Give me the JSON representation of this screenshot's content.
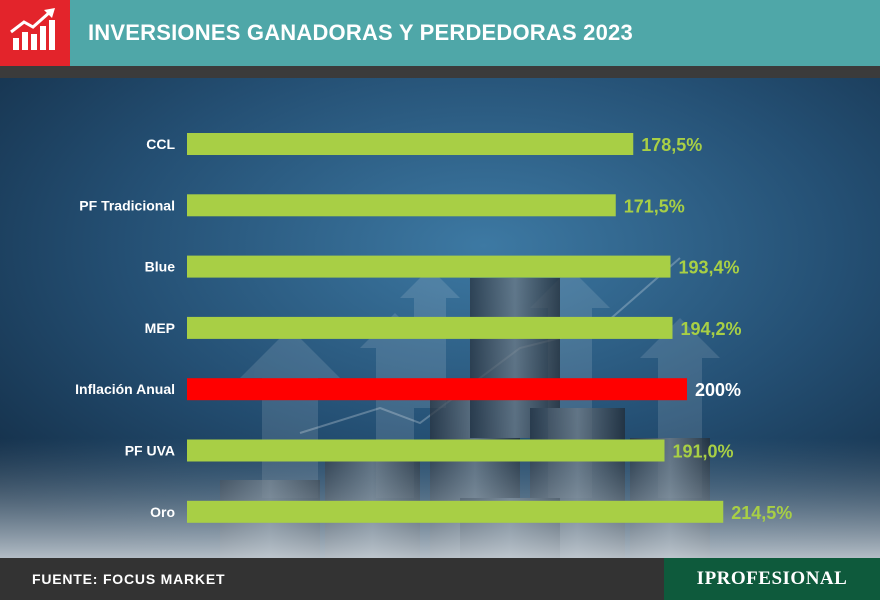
{
  "header": {
    "title": "INVERSIONES GANADORAS Y PERDEDORAS 2023",
    "logo_icon": "rising-bar-chart-icon"
  },
  "footer": {
    "source": "FUENTE: FOCUS MARKET",
    "brand": "IPROFESIONAL"
  },
  "colors": {
    "header": "#4fa7a8",
    "logo": "#e3242b",
    "bar": "#a8cf45",
    "highlight_bar": "#ff0000",
    "value_text": "#a8cf45",
    "highlight_text": "#ffffff",
    "brand": "#0e5a3c"
  },
  "chart_data": {
    "type": "bar",
    "orientation": "horizontal",
    "title": "INVERSIONES GANADORAS Y PERDEDORAS 2023",
    "categories": [
      "CCL",
      "PF Tradicional",
      "Blue",
      "MEP",
      "Inflación Anual",
      "PF UVA",
      "Oro"
    ],
    "values": [
      178.5,
      171.5,
      193.4,
      194.2,
      200,
      191.0,
      214.5
    ],
    "value_labels": [
      "178,5%",
      "171,5%",
      "193,4%",
      "194,2%",
      "200%",
      "191,0%",
      "214,5%"
    ],
    "highlight": "Inflación Anual",
    "grid": false,
    "legend": "none"
  }
}
